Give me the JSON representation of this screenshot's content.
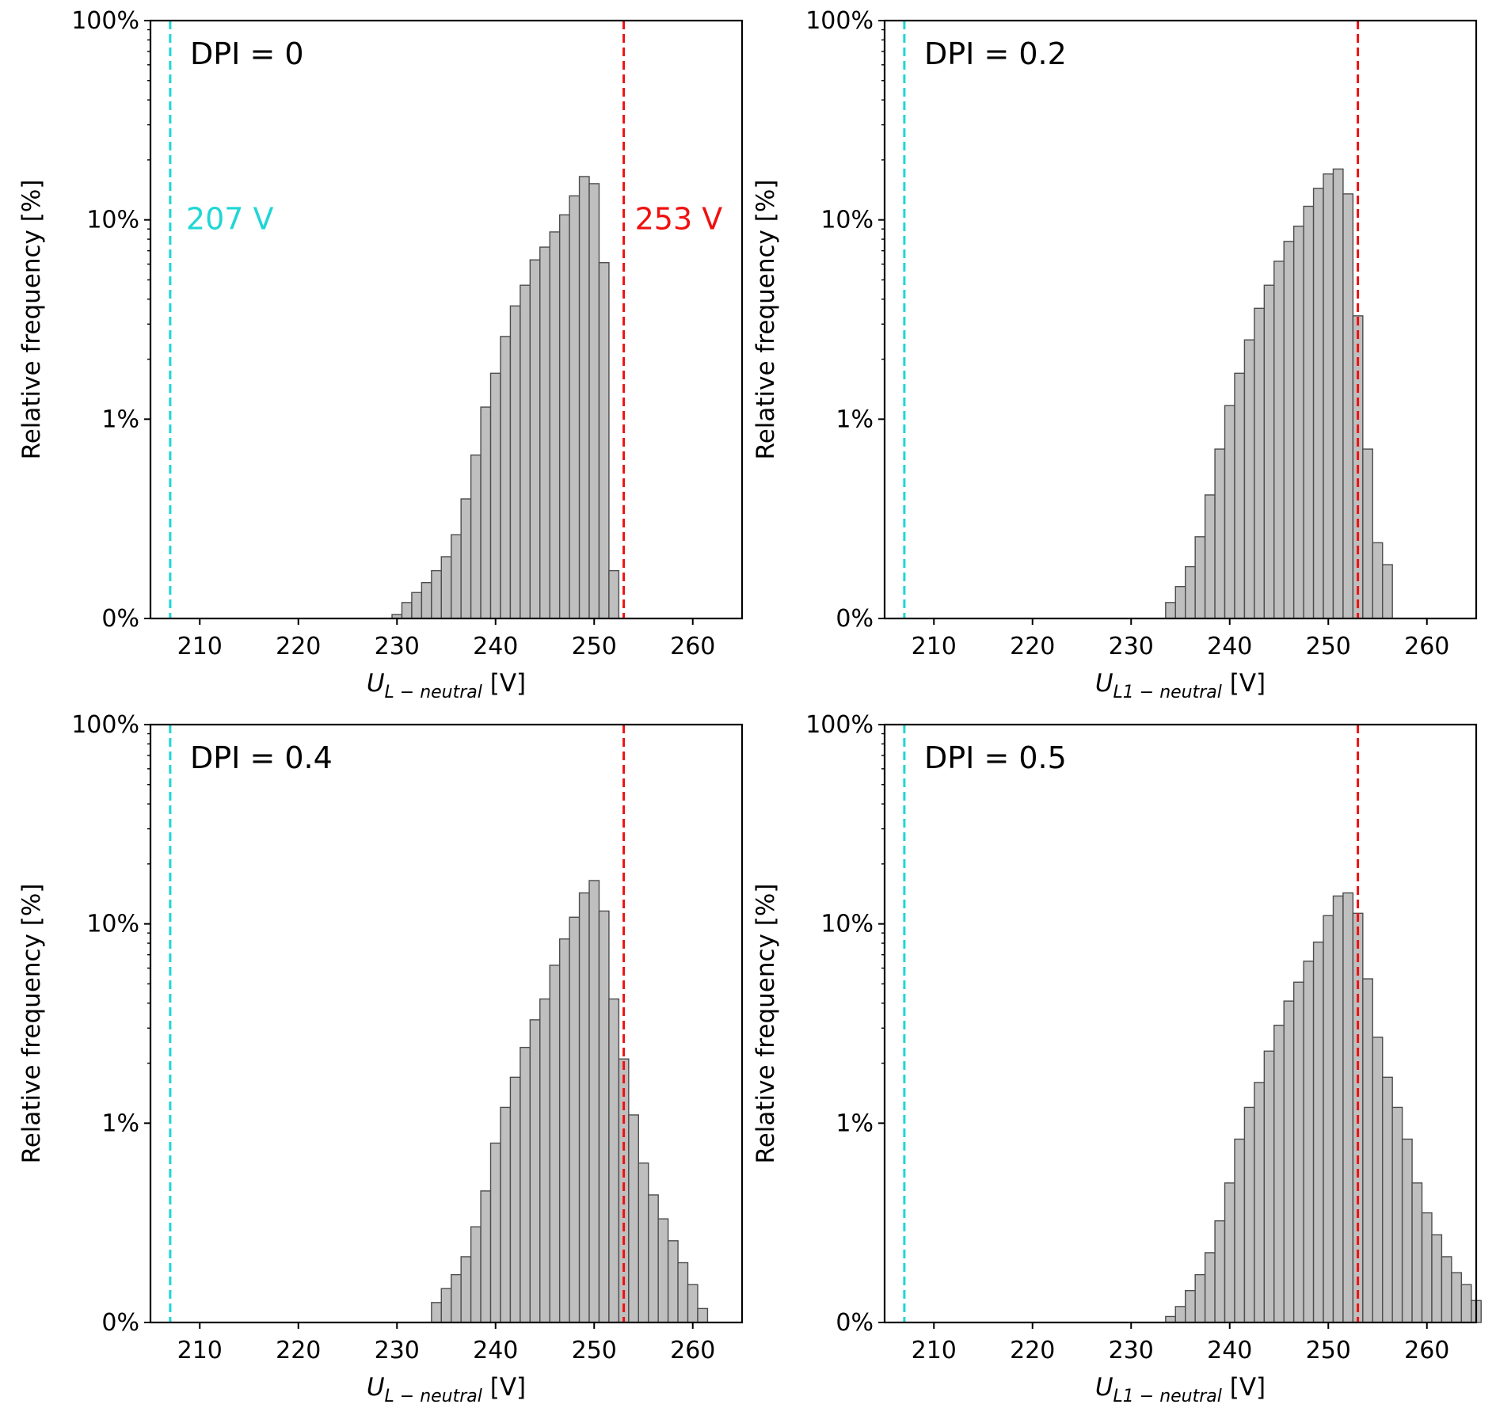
{
  "figure": {
    "colors": {
      "bar_fill": "#bfbfbf",
      "bar_edge": "#4d4d4d",
      "lower_limit": "#1fd6d6",
      "upper_limit": "#f01010"
    }
  },
  "chart_data": [
    {
      "type": "bar",
      "title": "DPI = 0",
      "xlabel_main": "U",
      "xlabel_sub": "L − neutral",
      "xlabel_unit": " [V]",
      "ylabel": "Relative frequency [%]",
      "xlim": [
        205,
        265
      ],
      "xticks": [
        210,
        220,
        230,
        240,
        250,
        260
      ],
      "yticks": [
        "0%",
        "1%",
        "10%",
        "100%"
      ],
      "bin_width": 1,
      "bin_start": 229.5,
      "values": [
        0.02,
        0.08,
        0.13,
        0.18,
        0.24,
        0.31,
        0.42,
        0.6,
        0.82,
        1.15,
        1.7,
        2.6,
        3.7,
        4.7,
        6.3,
        7.3,
        8.7,
        10.6,
        13.2,
        16.5,
        15.2,
        6.1,
        0.24
      ],
      "vlines": [
        {
          "x": 207,
          "label": "207 V",
          "color": "#1fd6d6"
        },
        {
          "x": 253,
          "label": "253 V",
          "color": "#f01010"
        }
      ]
    },
    {
      "type": "bar",
      "title": "DPI = 0.2",
      "xlabel_main": "U",
      "xlabel_sub": "L1 − neutral",
      "xlabel_unit": " [V]",
      "ylabel": "Relative frequency [%]",
      "xlim": [
        205,
        265
      ],
      "xticks": [
        210,
        220,
        230,
        240,
        250,
        260
      ],
      "yticks": [
        "0%",
        "1%",
        "10%",
        "100%"
      ],
      "bin_width": 1,
      "bin_start": 233.5,
      "values": [
        0.08,
        0.16,
        0.26,
        0.41,
        0.62,
        0.85,
        1.17,
        1.7,
        2.5,
        3.6,
        4.7,
        6.2,
        7.8,
        9.3,
        11.7,
        14.4,
        17.0,
        18.0,
        13.5,
        3.3,
        0.85,
        0.38,
        0.27
      ],
      "vlines": [
        {
          "x": 207,
          "label": "",
          "color": "#1fd6d6"
        },
        {
          "x": 253,
          "label": "",
          "color": "#f01010"
        }
      ]
    },
    {
      "type": "bar",
      "title": "DPI = 0.4",
      "xlabel_main": "U",
      "xlabel_sub": "L − neutral",
      "xlabel_unit": " [V]",
      "ylabel": "Relative frequency [%]",
      "xlim": [
        205,
        265
      ],
      "xticks": [
        210,
        220,
        230,
        240,
        250,
        260
      ],
      "yticks": [
        "0%",
        "1%",
        "10%",
        "100%"
      ],
      "bin_width": 1,
      "bin_start": 233.5,
      "values": [
        0.1,
        0.17,
        0.24,
        0.33,
        0.48,
        0.66,
        0.9,
        1.2,
        1.7,
        2.4,
        3.3,
        4.2,
        6.2,
        8.4,
        10.8,
        14.3,
        16.5,
        11.6,
        4.2,
        2.1,
        1.1,
        0.8,
        0.64,
        0.52,
        0.41,
        0.3,
        0.19,
        0.07
      ],
      "vlines": [
        {
          "x": 207,
          "label": "",
          "color": "#1fd6d6"
        },
        {
          "x": 253,
          "label": "",
          "color": "#f01010"
        }
      ]
    },
    {
      "type": "bar",
      "title": "DPI = 0.5",
      "xlabel_main": "U",
      "xlabel_sub": "L1 − neutral",
      "xlabel_unit": " [V]",
      "ylabel": "Relative frequency [%]",
      "xlim": [
        205,
        265
      ],
      "xticks": [
        210,
        220,
        230,
        240,
        250,
        260
      ],
      "yticks": [
        "0%",
        "1%",
        "10%",
        "100%"
      ],
      "bin_width": 1,
      "bin_start": 233.5,
      "values": [
        0.03,
        0.08,
        0.16,
        0.24,
        0.35,
        0.51,
        0.7,
        0.92,
        1.2,
        1.6,
        2.3,
        3.1,
        4.1,
        5.1,
        6.5,
        8.1,
        11.0,
        13.8,
        14.3,
        11.3,
        5.3,
        2.7,
        1.7,
        1.2,
        0.92,
        0.7,
        0.55,
        0.44,
        0.33,
        0.25,
        0.19,
        0.11
      ],
      "vlines": [
        {
          "x": 207,
          "label": "",
          "color": "#1fd6d6"
        },
        {
          "x": 253,
          "label": "",
          "color": "#f01010"
        }
      ]
    }
  ]
}
